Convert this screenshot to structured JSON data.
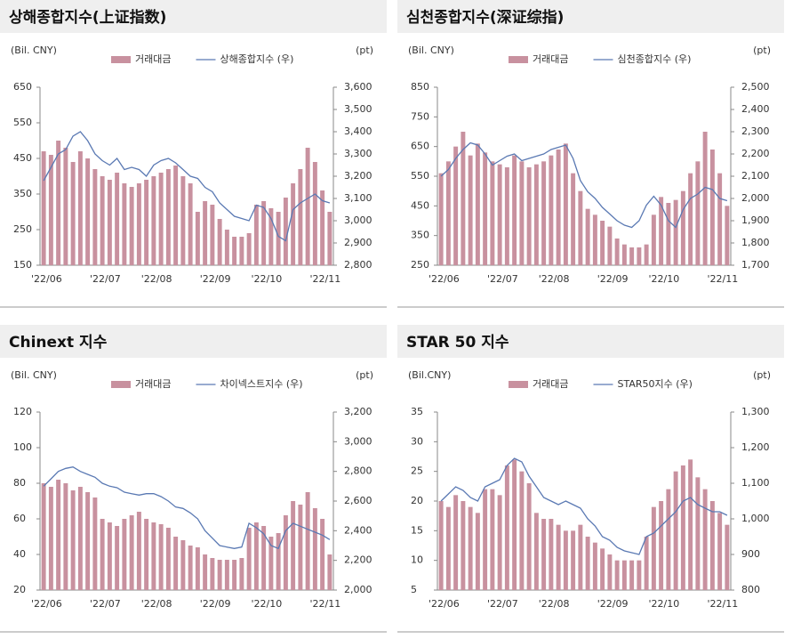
{
  "chart_data": [
    {
      "type": "combo",
      "title": "상해종합지수(上证指数)",
      "y_unit": "(Bil. CNY)",
      "y2_unit": "(pt)",
      "categories": [
        "'22/06",
        null,
        null,
        null,
        null,
        null,
        null,
        null,
        "'22/07",
        null,
        null,
        null,
        null,
        null,
        null,
        "'22/08",
        null,
        null,
        null,
        null,
        null,
        null,
        null,
        "'22/09",
        null,
        null,
        null,
        null,
        null,
        null,
        "'22/10",
        null,
        null,
        null,
        null,
        null,
        null,
        null,
        "'22/11",
        null
      ],
      "series": [
        {
          "name": "거래대금",
          "type": "bar",
          "color": "#c8919f",
          "values": [
            470,
            460,
            500,
            480,
            440,
            470,
            450,
            420,
            400,
            390,
            410,
            380,
            370,
            380,
            390,
            400,
            410,
            420,
            430,
            400,
            380,
            300,
            330,
            320,
            280,
            250,
            230,
            230,
            240,
            320,
            330,
            310,
            300,
            340,
            380,
            420,
            480,
            440,
            360,
            300
          ]
        },
        {
          "name": "상해종합지수 (우)",
          "type": "line",
          "axis": "y2",
          "color": "#5a79b3",
          "values": [
            3180,
            3240,
            3300,
            3320,
            3380,
            3400,
            3360,
            3300,
            3270,
            3250,
            3280,
            3230,
            3240,
            3230,
            3200,
            3250,
            3270,
            3280,
            3260,
            3230,
            3200,
            3190,
            3150,
            3130,
            3080,
            3050,
            3020,
            3010,
            3000,
            3070,
            3060,
            3010,
            2930,
            2910,
            3050,
            3080,
            3100,
            3120,
            3090,
            3080
          ]
        }
      ],
      "ylim": [
        150,
        650
      ],
      "yticks": [
        150,
        250,
        350,
        450,
        550,
        650
      ],
      "y2lim": [
        2800,
        3600
      ],
      "y2ticks": [
        {
          "value": 2800,
          "label": "2,800"
        },
        {
          "value": 2900,
          "label": "2,900"
        },
        {
          "value": 3000,
          "label": "3,000"
        },
        {
          "value": 3100,
          "label": "3,100"
        },
        {
          "value": 3200,
          "label": "3,200"
        },
        {
          "value": 3300,
          "label": "3,300"
        },
        {
          "value": 3400,
          "label": "3,400"
        },
        {
          "value": 3500,
          "label": "3,500"
        },
        {
          "value": 3600,
          "label": "3,600"
        }
      ]
    },
    {
      "type": "combo",
      "title": "심천종합지수(深证综指)",
      "y_unit": "(Bil. CNY)",
      "y2_unit": "(pt)",
      "categories": [
        "'22/06",
        null,
        null,
        null,
        null,
        null,
        null,
        null,
        "'22/07",
        null,
        null,
        null,
        null,
        null,
        null,
        "'22/08",
        null,
        null,
        null,
        null,
        null,
        null,
        null,
        "'22/09",
        null,
        null,
        null,
        null,
        null,
        null,
        "'22/10",
        null,
        null,
        null,
        null,
        null,
        null,
        null,
        "'22/11",
        null
      ],
      "series": [
        {
          "name": "거래대금",
          "type": "bar",
          "color": "#c8919f",
          "values": [
            560,
            600,
            650,
            700,
            620,
            660,
            630,
            600,
            590,
            580,
            620,
            600,
            580,
            590,
            600,
            620,
            640,
            660,
            560,
            500,
            440,
            420,
            400,
            380,
            340,
            320,
            310,
            310,
            320,
            420,
            480,
            460,
            470,
            500,
            560,
            600,
            700,
            640,
            560,
            450
          ]
        },
        {
          "name": "심천종합지수 (우)",
          "type": "line",
          "axis": "y2",
          "color": "#5a79b3",
          "values": [
            2100,
            2130,
            2180,
            2220,
            2250,
            2240,
            2200,
            2150,
            2170,
            2190,
            2200,
            2170,
            2180,
            2190,
            2200,
            2220,
            2230,
            2240,
            2180,
            2080,
            2030,
            2000,
            1960,
            1930,
            1900,
            1880,
            1870,
            1900,
            1970,
            2010,
            1970,
            1900,
            1870,
            1950,
            2000,
            2020,
            2050,
            2040,
            2000,
            1990
          ]
        }
      ],
      "ylim": [
        250,
        850
      ],
      "yticks": [
        250,
        350,
        450,
        550,
        650,
        750,
        850
      ],
      "y2lim": [
        1700,
        2500
      ],
      "y2ticks": [
        {
          "value": 1700,
          "label": "1,700"
        },
        {
          "value": 1800,
          "label": "1,800"
        },
        {
          "value": 1900,
          "label": "1,900"
        },
        {
          "value": 2000,
          "label": "2,000"
        },
        {
          "value": 2100,
          "label": "2,100"
        },
        {
          "value": 2200,
          "label": "2,200"
        },
        {
          "value": 2300,
          "label": "2,300"
        },
        {
          "value": 2400,
          "label": "2,400"
        },
        {
          "value": 2500,
          "label": "2,500"
        }
      ]
    },
    {
      "type": "combo",
      "title": "Chinext 지수",
      "y_unit": "(Bil. CNY)",
      "y2_unit": "(pt)",
      "categories": [
        "'22/06",
        null,
        null,
        null,
        null,
        null,
        null,
        null,
        "'22/07",
        null,
        null,
        null,
        null,
        null,
        null,
        "'22/08",
        null,
        null,
        null,
        null,
        null,
        null,
        null,
        "'22/09",
        null,
        null,
        null,
        null,
        null,
        null,
        "'22/10",
        null,
        null,
        null,
        null,
        null,
        null,
        null,
        "'22/11",
        null
      ],
      "series": [
        {
          "name": "거래대금",
          "type": "bar",
          "color": "#c8919f",
          "values": [
            80,
            78,
            82,
            80,
            76,
            78,
            75,
            72,
            60,
            58,
            56,
            60,
            62,
            64,
            60,
            58,
            57,
            55,
            50,
            48,
            45,
            44,
            40,
            38,
            37,
            37,
            37,
            38,
            55,
            58,
            56,
            50,
            52,
            62,
            70,
            68,
            75,
            66,
            60,
            40
          ]
        },
        {
          "name": "차이넥스트지수 (우)",
          "type": "line",
          "axis": "y2",
          "color": "#5a79b3",
          "values": [
            2700,
            2750,
            2800,
            2820,
            2830,
            2800,
            2780,
            2760,
            2720,
            2700,
            2690,
            2660,
            2650,
            2640,
            2650,
            2650,
            2630,
            2600,
            2560,
            2550,
            2520,
            2480,
            2400,
            2350,
            2300,
            2290,
            2280,
            2290,
            2450,
            2420,
            2380,
            2300,
            2280,
            2400,
            2450,
            2430,
            2410,
            2390,
            2370,
            2340
          ]
        }
      ],
      "ylim": [
        20,
        120
      ],
      "yticks": [
        20,
        40,
        60,
        80,
        100,
        120
      ],
      "y2lim": [
        2000,
        3200
      ],
      "y2ticks": [
        {
          "value": 2000,
          "label": "2,000"
        },
        {
          "value": 2200,
          "label": "2,200"
        },
        {
          "value": 2400,
          "label": "2,400"
        },
        {
          "value": 2600,
          "label": "2,600"
        },
        {
          "value": 2800,
          "label": "2,800"
        },
        {
          "value": 3000,
          "label": "3,000"
        },
        {
          "value": 3200,
          "label": "3,200"
        }
      ]
    },
    {
      "type": "combo",
      "title": "STAR 50 지수",
      "y_unit": "(Bil.CNY)",
      "y2_unit": "(pt)",
      "categories": [
        "'22/06",
        null,
        null,
        null,
        null,
        null,
        null,
        null,
        "'22/07",
        null,
        null,
        null,
        null,
        null,
        null,
        "'22/08",
        null,
        null,
        null,
        null,
        null,
        null,
        null,
        "'22/09",
        null,
        null,
        null,
        null,
        null,
        null,
        "'22/10",
        null,
        null,
        null,
        null,
        null,
        null,
        null,
        "'22/11",
        null
      ],
      "series": [
        {
          "name": "거래대금",
          "type": "bar",
          "color": "#c8919f",
          "values": [
            20,
            19,
            21,
            20,
            19,
            18,
            22,
            22,
            21,
            26,
            27,
            25,
            23,
            18,
            17,
            17,
            16,
            15,
            15,
            16,
            14,
            13,
            12,
            11,
            10,
            10,
            10,
            10,
            14,
            19,
            20,
            22,
            25,
            26,
            27,
            24,
            22,
            20,
            18,
            16
          ]
        },
        {
          "name": "STAR50지수 (우)",
          "type": "line",
          "axis": "y2",
          "color": "#5a79b3",
          "values": [
            1050,
            1070,
            1090,
            1080,
            1060,
            1050,
            1090,
            1100,
            1110,
            1150,
            1170,
            1160,
            1120,
            1090,
            1060,
            1050,
            1040,
            1050,
            1040,
            1030,
            1000,
            980,
            950,
            940,
            920,
            910,
            905,
            900,
            950,
            960,
            980,
            1000,
            1020,
            1050,
            1060,
            1040,
            1030,
            1020,
            1020,
            1010
          ]
        }
      ],
      "ylim": [
        5,
        35
      ],
      "yticks": [
        5,
        10,
        15,
        20,
        25,
        30,
        35
      ],
      "y2lim": [
        800,
        1300
      ],
      "y2ticks": [
        800,
        900,
        {
          "value": 1000,
          "label": "1,000"
        },
        {
          "value": 1100,
          "label": "1,100"
        },
        {
          "value": 1200,
          "label": "1,200"
        },
        {
          "value": 1300,
          "label": "1,300"
        }
      ]
    }
  ]
}
